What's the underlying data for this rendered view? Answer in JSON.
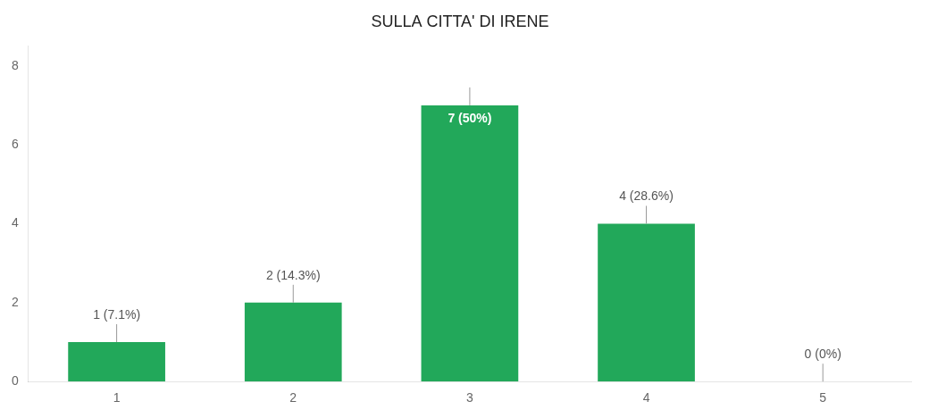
{
  "chart_data": {
    "type": "bar",
    "title": "SULLA CITTA' DI IRENE",
    "categories": [
      1,
      2,
      3,
      4,
      5
    ],
    "values": [
      1,
      2,
      7,
      4,
      0
    ],
    "value_labels": [
      "1 (7.1%)",
      "2 (14.3%)",
      "7 (50%)",
      "4 (28.6%)",
      "0 (0%)"
    ],
    "data_labels": true,
    "color": "#22a85a",
    "ylim": [
      0,
      8.5
    ],
    "yticks": [
      0,
      2,
      4,
      6,
      8
    ],
    "grid": false
  }
}
